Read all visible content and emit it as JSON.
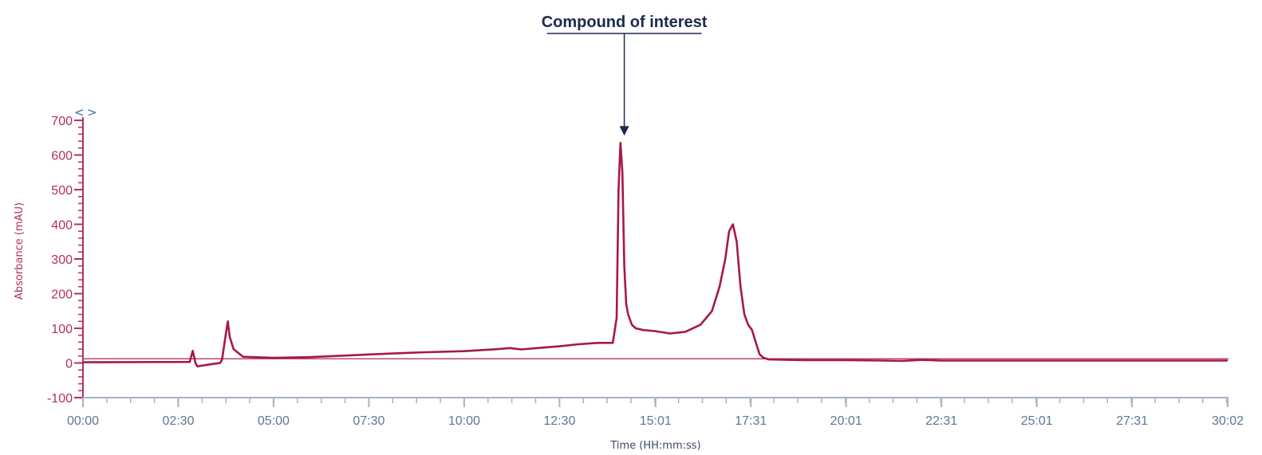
{
  "chart_data": {
    "type": "line",
    "title": "",
    "xlabel": "Time (HH:mm:ss)",
    "ylabel": "Absorbance (mAU)",
    "xlim_min": [
      0,
      30.05
    ],
    "ylim": [
      -100,
      700
    ],
    "x_ticks": [
      {
        "pos": 0,
        "label": "00:00"
      },
      {
        "pos": 2.5,
        "label": "02:30"
      },
      {
        "pos": 5.0,
        "label": "05:00"
      },
      {
        "pos": 7.5,
        "label": "07:30"
      },
      {
        "pos": 10.0,
        "label": "10:00"
      },
      {
        "pos": 12.5,
        "label": "12:30"
      },
      {
        "pos": 15.02,
        "label": "15:01"
      },
      {
        "pos": 17.52,
        "label": "17:31"
      },
      {
        "pos": 20.02,
        "label": "20:01"
      },
      {
        "pos": 22.52,
        "label": "22:31"
      },
      {
        "pos": 25.02,
        "label": "25:01"
      },
      {
        "pos": 27.52,
        "label": "27:31"
      },
      {
        "pos": 30.03,
        "label": "30:02"
      }
    ],
    "y_ticks": [
      -100,
      0,
      100,
      200,
      300,
      400,
      500,
      600,
      700
    ],
    "grid": false,
    "baseline_y": 12,
    "series": [
      {
        "name": "",
        "x": [
          0,
          2.8,
          2.88,
          2.95,
          3.0,
          3.1,
          3.4,
          3.6,
          3.65,
          3.75,
          3.8,
          3.85,
          3.95,
          4.2,
          5.0,
          6.0,
          7.0,
          8.0,
          9.0,
          10.0,
          10.9,
          11.2,
          11.5,
          12.0,
          12.5,
          13.0,
          13.5,
          13.9,
          14.0,
          14.05,
          14.1,
          14.15,
          14.2,
          14.25,
          14.3,
          14.4,
          14.5,
          14.7,
          15.0,
          15.4,
          15.8,
          16.2,
          16.5,
          16.7,
          16.85,
          16.95,
          17.05,
          17.15,
          17.25,
          17.35,
          17.45,
          17.55,
          17.65,
          17.75,
          17.85,
          18.0,
          18.5,
          19.0,
          20.0,
          21.0,
          21.5,
          22.0,
          22.5,
          23.0,
          25.0,
          27.5,
          30.03
        ],
        "y": [
          2,
          3,
          35,
          0,
          -10,
          -8,
          -3,
          0,
          10,
          85,
          120,
          75,
          40,
          18,
          15,
          17,
          22,
          27,
          31,
          34,
          40,
          43,
          39,
          44,
          48,
          54,
          58,
          58,
          130,
          500,
          635,
          550,
          280,
          170,
          140,
          110,
          100,
          95,
          92,
          85,
          90,
          110,
          150,
          220,
          300,
          380,
          400,
          350,
          220,
          140,
          110,
          95,
          60,
          25,
          15,
          10,
          9,
          8,
          8,
          7,
          6,
          9,
          7,
          7,
          7,
          7,
          7
        ]
      }
    ],
    "annotations": [
      {
        "text": "Compound of interest",
        "x": 14.2,
        "y": 635
      }
    ],
    "colors": {
      "series": "#a8174c",
      "baseline": "#b84a6e",
      "y_axis": "#b0305e",
      "x_axis": "#a5b3c9",
      "x_tick_labels": "#5e7596",
      "annotation": "#1b2a4c",
      "nav": "#3a6fb5"
    },
    "nav_icons": [
      "chevron-left-icon",
      "chevron-right-icon"
    ]
  }
}
